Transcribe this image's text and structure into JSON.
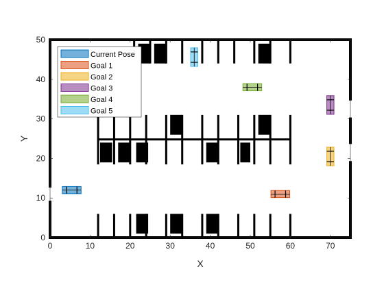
{
  "chart_data": {
    "type": "scatter",
    "title": "",
    "xlabel": "X",
    "ylabel": "Y",
    "xlim": [
      0,
      75
    ],
    "ylim": [
      0,
      50
    ],
    "xticks": [
      0,
      10,
      20,
      30,
      40,
      50,
      60,
      70
    ],
    "yticks": [
      0,
      10,
      20,
      30,
      40,
      50
    ],
    "grid": false,
    "legend_position": "top-left",
    "boundary": [
      [
        [
          0,
          0
        ],
        [
          75,
          0
        ],
        [
          75,
          19
        ]
      ],
      [
        [
          75,
          24
        ],
        [
          75,
          30
        ]
      ],
      [
        [
          75,
          35
        ],
        [
          75,
          50
        ],
        [
          0,
          50
        ],
        [
          0,
          13
        ]
      ],
      [
        [
          0,
          9
        ],
        [
          0,
          0
        ]
      ]
    ],
    "parking_lines": [
      {
        "x": 12,
        "y1": 0,
        "y2": 6
      },
      {
        "x": 16,
        "y1": 0,
        "y2": 6
      },
      {
        "x": 20,
        "y1": 0,
        "y2": 6
      },
      {
        "x": 24,
        "y1": 0,
        "y2": 6
      },
      {
        "x": 29,
        "y1": 0,
        "y2": 6
      },
      {
        "x": 33,
        "y1": 0,
        "y2": 6
      },
      {
        "x": 38,
        "y1": 0,
        "y2": 6
      },
      {
        "x": 42,
        "y1": 0,
        "y2": 6
      },
      {
        "x": 47,
        "y1": 0,
        "y2": 6
      },
      {
        "x": 51,
        "y1": 0,
        "y2": 6
      },
      {
        "x": 55,
        "y1": 0,
        "y2": 6
      },
      {
        "x": 60,
        "y1": 0,
        "y2": 6
      },
      {
        "x": 12,
        "y1": 18.5,
        "y2": 31
      },
      {
        "x": 16,
        "y1": 18.5,
        "y2": 31
      },
      {
        "x": 20,
        "y1": 18.5,
        "y2": 31
      },
      {
        "x": 24,
        "y1": 18.5,
        "y2": 31
      },
      {
        "x": 29,
        "y1": 18.5,
        "y2": 31
      },
      {
        "x": 33,
        "y1": 18.5,
        "y2": 31
      },
      {
        "x": 38,
        "y1": 18.5,
        "y2": 31
      },
      {
        "x": 42,
        "y1": 18.5,
        "y2": 31
      },
      {
        "x": 47,
        "y1": 18.5,
        "y2": 31
      },
      {
        "x": 51,
        "y1": 18.5,
        "y2": 31
      },
      {
        "x": 55,
        "y1": 18.5,
        "y2": 31
      },
      {
        "x": 60,
        "y1": 18.5,
        "y2": 31
      },
      {
        "x": 21,
        "y1": 44,
        "y2": 50
      },
      {
        "x": 25,
        "y1": 44,
        "y2": 50
      },
      {
        "x": 29,
        "y1": 44,
        "y2": 50
      },
      {
        "x": 33,
        "y1": 44,
        "y2": 50
      },
      {
        "x": 38,
        "y1": 44,
        "y2": 50
      },
      {
        "x": 42,
        "y1": 44,
        "y2": 50
      },
      {
        "x": 46,
        "y1": 44,
        "y2": 50
      },
      {
        "x": 51,
        "y1": 44,
        "y2": 50
      },
      {
        "x": 55,
        "y1": 44,
        "y2": 50
      },
      {
        "x": 60,
        "y1": 44,
        "y2": 50
      }
    ],
    "divider": {
      "x1": 12,
      "x2": 60,
      "y": 24.8
    },
    "obstacles": [
      {
        "x": [
          21.5,
          24.5
        ],
        "y": [
          1,
          6
        ]
      },
      {
        "x": [
          30,
          33
        ],
        "y": [
          1,
          6
        ]
      },
      {
        "x": [
          39,
          42
        ],
        "y": [
          1,
          6
        ]
      },
      {
        "x": [
          12.5,
          15.5
        ],
        "y": [
          19,
          24
        ]
      },
      {
        "x": [
          17,
          20
        ],
        "y": [
          19,
          24
        ]
      },
      {
        "x": [
          21.5,
          24.5
        ],
        "y": [
          19,
          24
        ]
      },
      {
        "x": [
          39,
          42
        ],
        "y": [
          19,
          24
        ]
      },
      {
        "x": [
          47.5,
          50
        ],
        "y": [
          19,
          24
        ]
      },
      {
        "x": [
          30,
          33
        ],
        "y": [
          26,
          31
        ]
      },
      {
        "x": [
          52,
          55
        ],
        "y": [
          26,
          31
        ]
      },
      {
        "x": [
          22,
          25
        ],
        "y": [
          44,
          49
        ]
      },
      {
        "x": [
          26,
          29
        ],
        "y": [
          44,
          49
        ]
      },
      {
        "x": [
          52,
          55
        ],
        "y": [
          44,
          49
        ]
      }
    ],
    "series": [
      {
        "name": "Current Pose",
        "color": "#0072BD",
        "x": 5.4,
        "y": 12,
        "heading_deg": 0,
        "length": 4.7,
        "width": 1.8
      },
      {
        "name": "Goal 1",
        "color": "#D95319",
        "x": 57.5,
        "y": 11,
        "heading_deg": 0,
        "length": 4.7,
        "width": 1.8
      },
      {
        "name": "Goal 2",
        "color": "#EDB120",
        "x": 70,
        "y": 20.5,
        "heading_deg": 90,
        "length": 4.7,
        "width": 1.8
      },
      {
        "name": "Goal 3",
        "color": "#7E2F8E",
        "x": 70,
        "y": 33.5,
        "heading_deg": 90,
        "length": 4.7,
        "width": 1.8
      },
      {
        "name": "Goal 4",
        "color": "#77AC30",
        "x": 50.5,
        "y": 38,
        "heading_deg": 0,
        "length": 4.7,
        "width": 1.8
      },
      {
        "name": "Goal 5",
        "color": "#4DBEEE",
        "x": 36,
        "y": 45.6,
        "heading_deg": 90,
        "length": 4.7,
        "width": 1.8
      }
    ]
  }
}
